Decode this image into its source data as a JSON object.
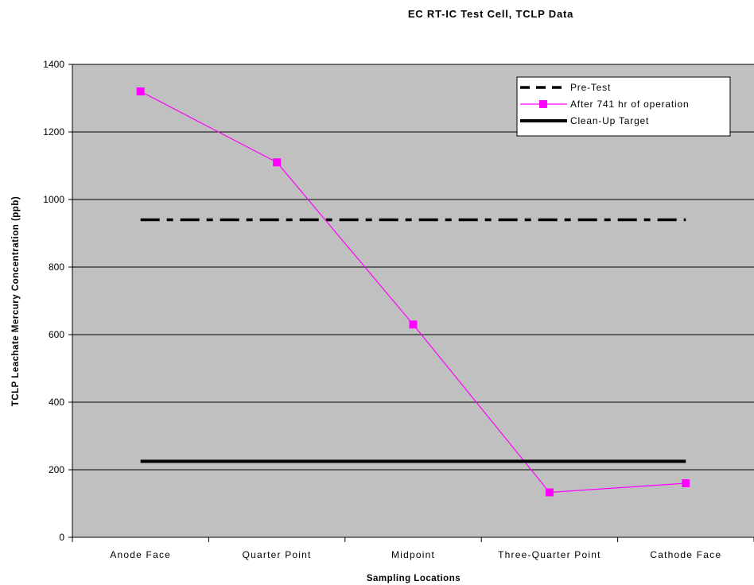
{
  "chart_data": {
    "type": "line",
    "title": "EC RT-IC Test Cell, TCLP Data",
    "xlabel": "Sampling Locations",
    "ylabel": "TCLP Leachate Mercury Concentration (ppb)",
    "categories": [
      "Anode Face",
      "Quarter Point",
      "Midpoint",
      "Three-Quarter Point",
      "Cathode Face"
    ],
    "ylim": [
      0,
      1400
    ],
    "yticks": [
      0,
      200,
      400,
      600,
      800,
      1000,
      1200,
      1400
    ],
    "grid": true,
    "legend_position": "top-right",
    "plot_background": "#c0c0c0",
    "series": [
      {
        "name": "Pre-Test",
        "style": "dash-dot",
        "color": "#000000",
        "values": [
          940,
          940,
          940,
          940,
          940
        ]
      },
      {
        "name": "After 741 hr of operation",
        "style": "line-square-markers",
        "color": "#ff00ff",
        "values": [
          1320,
          1110,
          630,
          133,
          160
        ]
      },
      {
        "name": "Clean-Up Target",
        "style": "solid-thick",
        "color": "#000000",
        "values": [
          225,
          225,
          225,
          225,
          225
        ]
      }
    ]
  }
}
